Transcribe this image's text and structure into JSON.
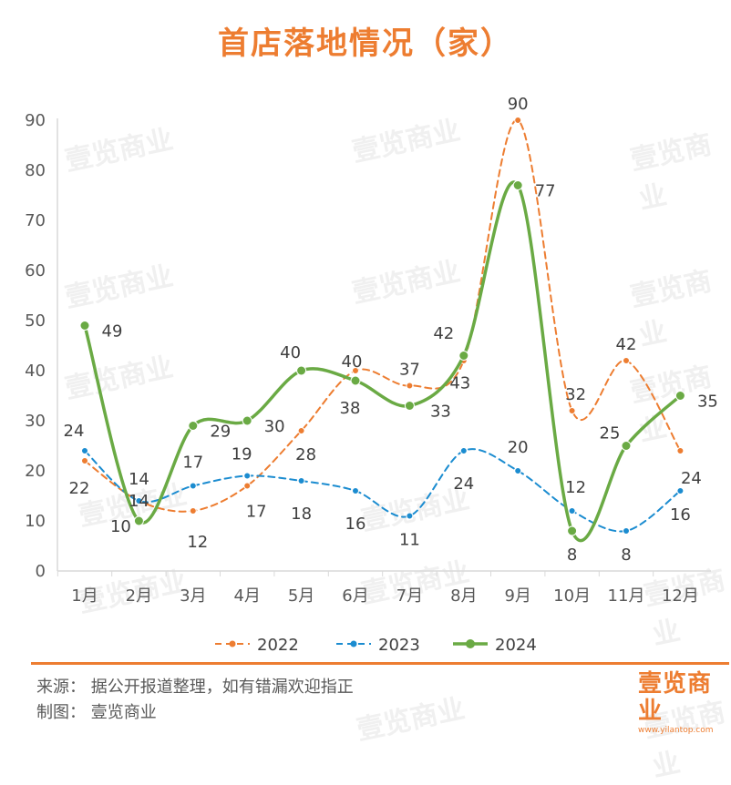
{
  "title": "首店落地情况（家）",
  "footer": {
    "source": "来源：  据公开报道整理，如有错漏欢迎指正",
    "credit": "制图：  壹览商业"
  },
  "brand": {
    "name": "壹览商业",
    "url": "www.yilantop.com"
  },
  "watermark": "壹览商业",
  "colors": {
    "accent": "#ED7D31",
    "s2022": "#ED7D31",
    "s2023": "#1B8CD0",
    "s2024": "#6AAA44"
  },
  "chart_data": {
    "type": "line",
    "title": "首店落地情况（家）",
    "xlabel": "",
    "ylabel": "",
    "categories": [
      "1月",
      "2月",
      "3月",
      "4月",
      "5月",
      "6月",
      "7月",
      "8月",
      "9月",
      "10月",
      "11月",
      "12月"
    ],
    "ylim": [
      0,
      90
    ],
    "yticks": [
      "0",
      "10",
      "20",
      "30",
      "40",
      "50",
      "60",
      "70",
      "80",
      "90"
    ],
    "grid": false,
    "legend_position": "bottom",
    "series": [
      {
        "name": "2022",
        "values": [
          22,
          14,
          12,
          17,
          28,
          40,
          37,
          42,
          90,
          32,
          42,
          24
        ],
        "style": "dashed"
      },
      {
        "name": "2023",
        "values": [
          24,
          14,
          17,
          19,
          18,
          16,
          11,
          24,
          20,
          12,
          8,
          16
        ],
        "style": "dashed"
      },
      {
        "name": "2024",
        "values": [
          49,
          10,
          29,
          30,
          40,
          38,
          33,
          43,
          77,
          8,
          25,
          35
        ],
        "style": "solid"
      }
    ]
  }
}
